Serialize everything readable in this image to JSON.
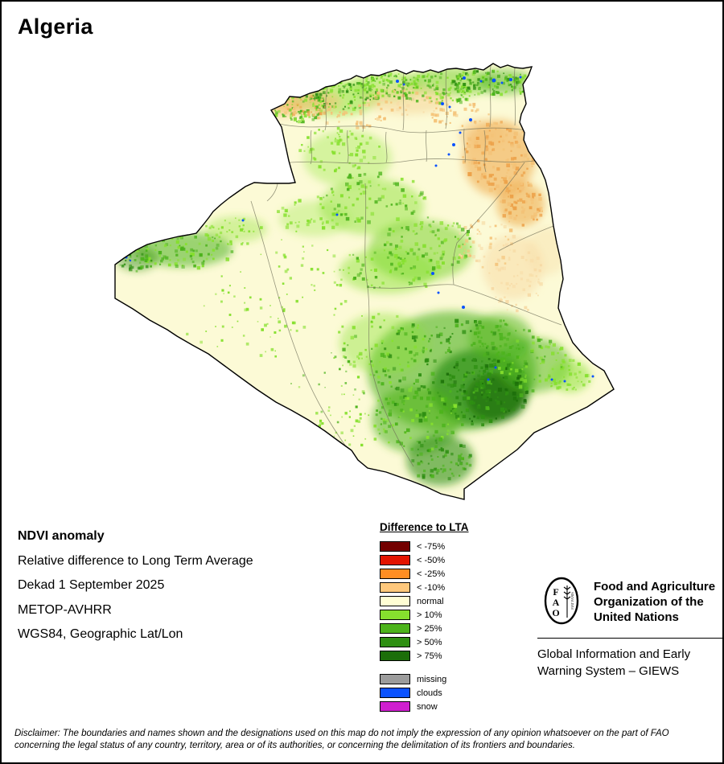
{
  "page": {
    "title": "Algeria"
  },
  "info": {
    "heading": "NDVI anomaly",
    "lines": [
      "Relative difference to Long Term Average",
      "Dekad 1 September 2025",
      "METOP-AVHRR",
      "WGS84, Geographic Lat/Lon"
    ]
  },
  "legend": {
    "title": "Difference to LTA",
    "items": [
      {
        "label": "< -75%",
        "color": "#730000"
      },
      {
        "label": "< -50%",
        "color": "#e31400"
      },
      {
        "label": "< -25%",
        "color": "#ff8e23"
      },
      {
        "label": "< -10%",
        "color": "#ffc87c"
      },
      {
        "label": "normal",
        "color": "#fffed4"
      },
      {
        "label": "> 10%",
        "color": "#86e02e"
      },
      {
        "label": "> 25%",
        "color": "#4cb31c"
      },
      {
        "label": "> 50%",
        "color": "#2e8f12"
      },
      {
        "label": "> 75%",
        "color": "#1c6e0a"
      },
      {
        "label": "missing",
        "color": "#9c9c9c"
      },
      {
        "label": "clouds",
        "color": "#0a52ff"
      },
      {
        "label": "snow",
        "color": "#cf1fcf"
      }
    ]
  },
  "fao": {
    "letters": [
      "F",
      "A",
      "O"
    ],
    "motto": "FIAT PANIS",
    "org_lines": [
      "Food and Agriculture",
      "Organization of the",
      "United Nations"
    ],
    "giews_lines": [
      "Global Information and Early",
      "Warning System – GIEWS"
    ]
  },
  "disclaimer": {
    "text": "Disclaimer: The boundaries and names shown and the designations used on this map do not imply the expression of any opinion whatsoever on the part of FAO concerning the legal status of any country, territory, area or of its authorities, or concerning the delimitation of its frontiers and boundaries."
  }
}
